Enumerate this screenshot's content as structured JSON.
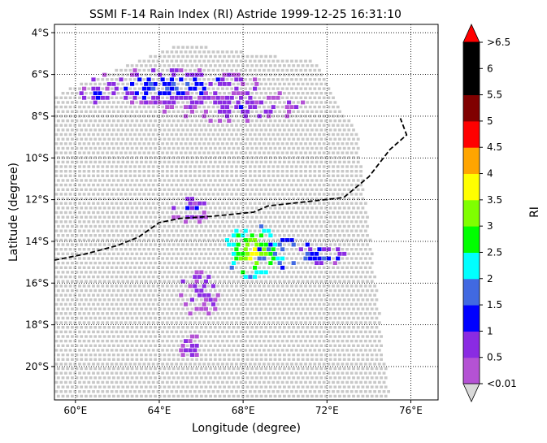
{
  "chart_data": {
    "type": "heatmap",
    "title": "SSMI F-14 Rain Index (RI) Astride 1999-12-25 16:31:10",
    "xlabel": "Longitude (degree)",
    "ylabel": "Latitude (degree)",
    "xlim": [
      59.0,
      77.3
    ],
    "ylim": [
      -21.6,
      -3.6
    ],
    "xticks": [
      {
        "value": 60,
        "label": "60°E"
      },
      {
        "value": 64,
        "label": "64°E"
      },
      {
        "value": 68,
        "label": "68°E"
      },
      {
        "value": 72,
        "label": "72°E"
      },
      {
        "value": 76,
        "label": "76°E"
      }
    ],
    "yticks": [
      {
        "value": -4,
        "label": "4°S"
      },
      {
        "value": -6,
        "label": "6°S"
      },
      {
        "value": -8,
        "label": "8°S"
      },
      {
        "value": -10,
        "label": "10°S"
      },
      {
        "value": -12,
        "label": "12°S"
      },
      {
        "value": -14,
        "label": "14°S"
      },
      {
        "value": -16,
        "label": "16°S"
      },
      {
        "value": -18,
        "label": "18°S"
      },
      {
        "value": -20,
        "label": "20°S"
      }
    ],
    "grid": true,
    "colorbar": {
      "label": "RI",
      "min_label": "<0.01",
      "max_label": ">6.5",
      "under_color": "#d9d9d9",
      "over_color": "#ff0000",
      "levels": [
        {
          "label": "0.5",
          "color": "#b452d4"
        },
        {
          "label": "1",
          "color": "#8a2be2"
        },
        {
          "label": "1.5",
          "color": "#0000ff"
        },
        {
          "label": "2",
          "color": "#4169e1"
        },
        {
          "label": "2.5",
          "color": "#00ffff"
        },
        {
          "label": "3",
          "color": "#00ff00"
        },
        {
          "label": "3.5",
          "color": "#7fff00"
        },
        {
          "label": "4",
          "color": "#ffff00"
        },
        {
          "label": "4.5",
          "color": "#ffa500"
        },
        {
          "label": "5",
          "color": "#ff0000"
        },
        {
          "label": "5.5",
          "color": "#800000"
        },
        {
          "label": "6",
          "color": "#000000"
        },
        {
          "label": "",
          "color": "#000000"
        }
      ]
    },
    "swath": {
      "color": "#c8c8c8",
      "corners": [
        [
          58.5,
          -7.2
        ],
        [
          65.0,
          -4.5
        ],
        [
          71.5,
          -5.4
        ],
        [
          73.5,
          -9.0
        ],
        [
          75.0,
          -21.6
        ],
        [
          59.0,
          -21.6
        ]
      ]
    },
    "rain_regions": [
      {
        "center": [
          64.5,
          -6.6
        ],
        "radius": [
          4.5,
          0.9
        ],
        "values": [
          0.3,
          1.8
        ]
      },
      {
        "center": [
          61.0,
          -7.0
        ],
        "radius": [
          0.8,
          0.5
        ],
        "values": [
          0.3,
          1.5
        ]
      },
      {
        "center": [
          67.5,
          -7.5
        ],
        "radius": [
          3.5,
          0.8
        ],
        "values": [
          0.3,
          0.9
        ]
      },
      {
        "center": [
          68.5,
          -14.5
        ],
        "radius": [
          1.4,
          1.3
        ],
        "values": [
          2.0,
          3.9
        ]
      },
      {
        "center": [
          70.0,
          -14.6
        ],
        "radius": [
          1.5,
          0.7
        ],
        "values": [
          1.2,
          2.4
        ]
      },
      {
        "center": [
          71.8,
          -14.7
        ],
        "radius": [
          1.4,
          0.5
        ],
        "values": [
          0.4,
          1.8
        ]
      },
      {
        "center": [
          65.5,
          -12.5
        ],
        "radius": [
          1.2,
          0.6
        ],
        "values": [
          0.3,
          1.2
        ]
      },
      {
        "center": [
          66.0,
          -16.5
        ],
        "radius": [
          1.0,
          1.2
        ],
        "values": [
          0.3,
          0.9
        ]
      },
      {
        "center": [
          65.5,
          -19.0
        ],
        "radius": [
          0.6,
          0.6
        ],
        "values": [
          0.3,
          0.8
        ]
      }
    ],
    "track": {
      "style": "dashed",
      "color": "#000000",
      "points": [
        [
          59.0,
          -14.9
        ],
        [
          60.5,
          -14.6
        ],
        [
          62.0,
          -14.2
        ],
        [
          63.0,
          -13.8
        ],
        [
          64.0,
          -13.1
        ],
        [
          65.0,
          -12.9
        ],
        [
          66.5,
          -12.8
        ],
        [
          67.5,
          -12.7
        ],
        [
          68.5,
          -12.6
        ],
        [
          69.2,
          -12.3
        ],
        [
          71.0,
          -12.1
        ],
        [
          72.8,
          -11.9
        ],
        [
          74.0,
          -10.9
        ],
        [
          75.0,
          -9.6
        ],
        [
          75.8,
          -8.9
        ],
        [
          75.5,
          -8.1
        ]
      ]
    }
  }
}
